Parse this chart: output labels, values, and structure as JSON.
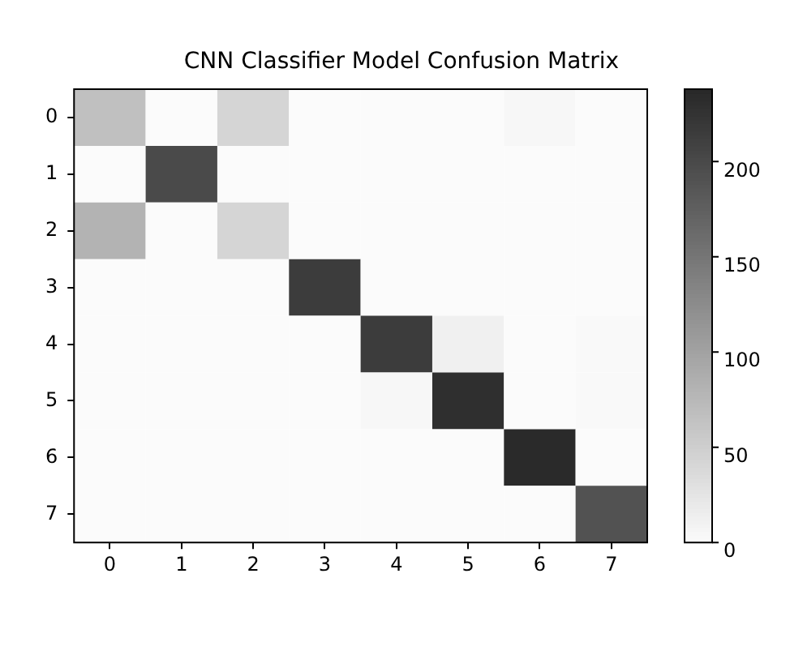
{
  "chart_data": {
    "type": "heatmap",
    "title": "CNN Classifier Model Confusion Matrix",
    "categories": [
      "0",
      "1",
      "2",
      "3",
      "4",
      "5",
      "6",
      "7"
    ],
    "y_categories": [
      "0",
      "1",
      "2",
      "3",
      "4",
      "5",
      "6",
      "7"
    ],
    "cells": [
      [
        67,
        0,
        43,
        0,
        0,
        0,
        5,
        0
      ],
      [
        0,
        200,
        0,
        0,
        0,
        0,
        0,
        0
      ],
      [
        81,
        0,
        43,
        0,
        0,
        0,
        0,
        0
      ],
      [
        0,
        0,
        0,
        215,
        0,
        0,
        0,
        0
      ],
      [
        0,
        0,
        0,
        0,
        215,
        12,
        0,
        2
      ],
      [
        0,
        0,
        0,
        0,
        4,
        230,
        0,
        2
      ],
      [
        0,
        0,
        0,
        0,
        0,
        0,
        236,
        0
      ],
      [
        0,
        0,
        0,
        0,
        0,
        0,
        0,
        191
      ]
    ],
    "clim": [
      0,
      238
    ],
    "cticks": [
      0,
      50,
      100,
      150,
      200
    ]
  }
}
